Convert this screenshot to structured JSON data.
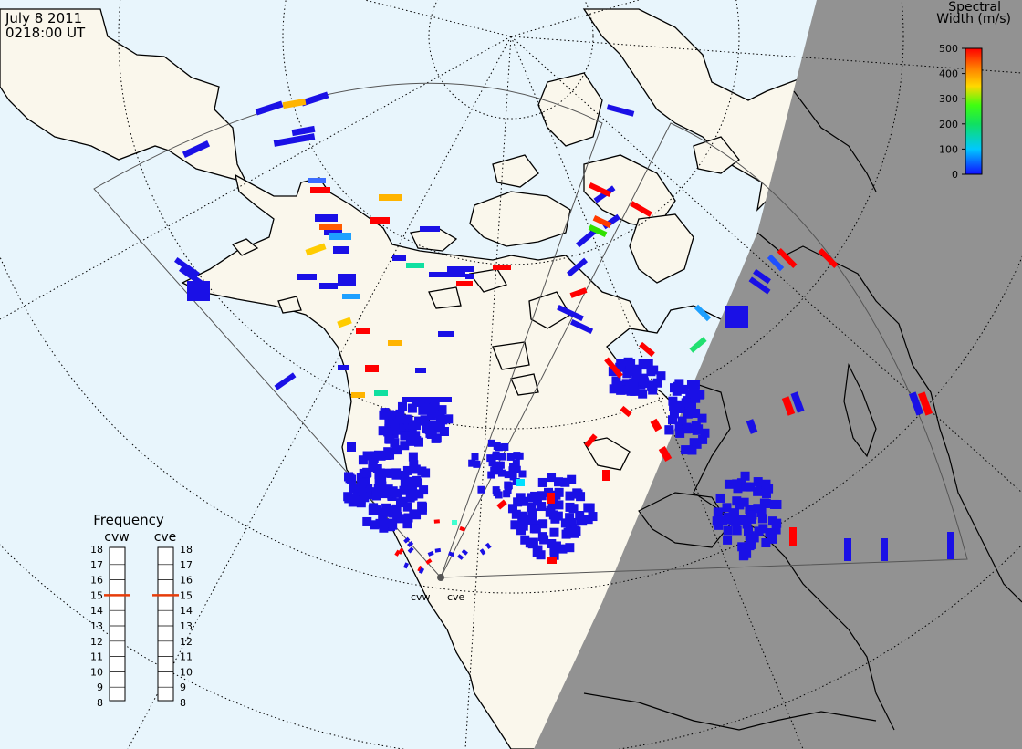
{
  "header": {
    "date": "July  8 2011",
    "time": "0218:00 UT"
  },
  "colorbar": {
    "title_line1": "Spectral",
    "title_line2": "Width (m/s)",
    "ticks": [
      "500",
      "400",
      "300",
      "200",
      "100",
      "0"
    ]
  },
  "frequency": {
    "title": "Frequency",
    "left_label": "cvw",
    "right_label": "cve",
    "ticks": [
      "18",
      "17",
      "16",
      "15",
      "14",
      "13",
      "12",
      "11",
      "10",
      "9",
      "8"
    ],
    "cvw_value": 15,
    "cve_value": 15,
    "min": 8,
    "max": 18
  },
  "radars": {
    "west": "cvw",
    "east": "cve"
  },
  "colors": {
    "ocean": "#e8f5fc",
    "land": "#faf7ec",
    "night": "#929292",
    "low": "#1a10e6",
    "high": "#ff0000",
    "indicator": "#e63c0a"
  }
}
